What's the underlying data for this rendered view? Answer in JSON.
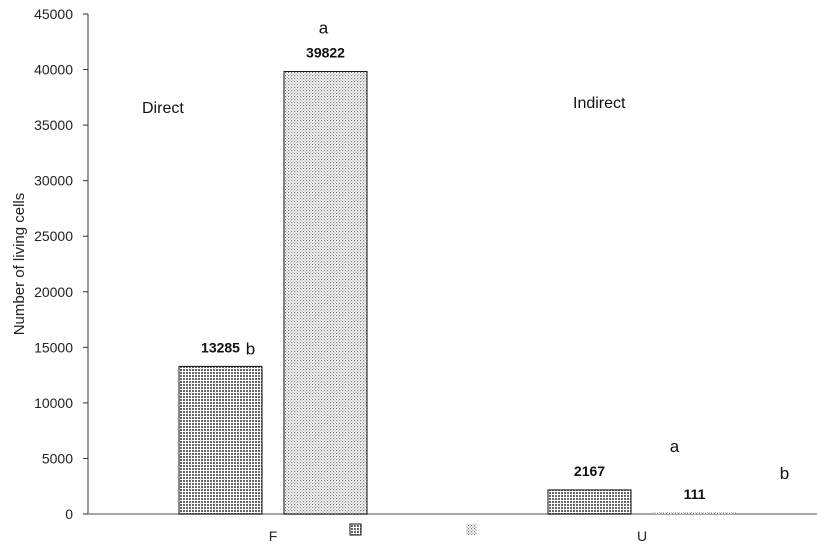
{
  "chart_data": {
    "type": "bar",
    "ylabel": "Number of living cells",
    "xlabel": "",
    "ylim": [
      0,
      45000
    ],
    "yticks": [
      0,
      5000,
      10000,
      15000,
      20000,
      25000,
      30000,
      35000,
      40000,
      45000
    ],
    "grid": false,
    "categories": [
      "F",
      "U"
    ],
    "series": [
      {
        "pattern": "dense-dots",
        "values": [
          13285,
          2167
        ]
      },
      {
        "pattern": "light-dots",
        "values": [
          39822,
          111
        ]
      }
    ],
    "value_labels": [
      [
        "13285",
        "2167"
      ],
      [
        "39822",
        "111"
      ]
    ],
    "significance_letters": [
      [
        "b",
        "a"
      ],
      [
        "a",
        "b"
      ]
    ],
    "annotations": [
      "Direct",
      "Indirect"
    ],
    "legend": {
      "placement": "bottom",
      "entries": [
        "",
        ""
      ]
    },
    "colors": {
      "bar_edge": "#111111",
      "dense_fill": "#9a9a9a",
      "light_fill": "#c8c8c8",
      "axis": "#333333"
    }
  }
}
